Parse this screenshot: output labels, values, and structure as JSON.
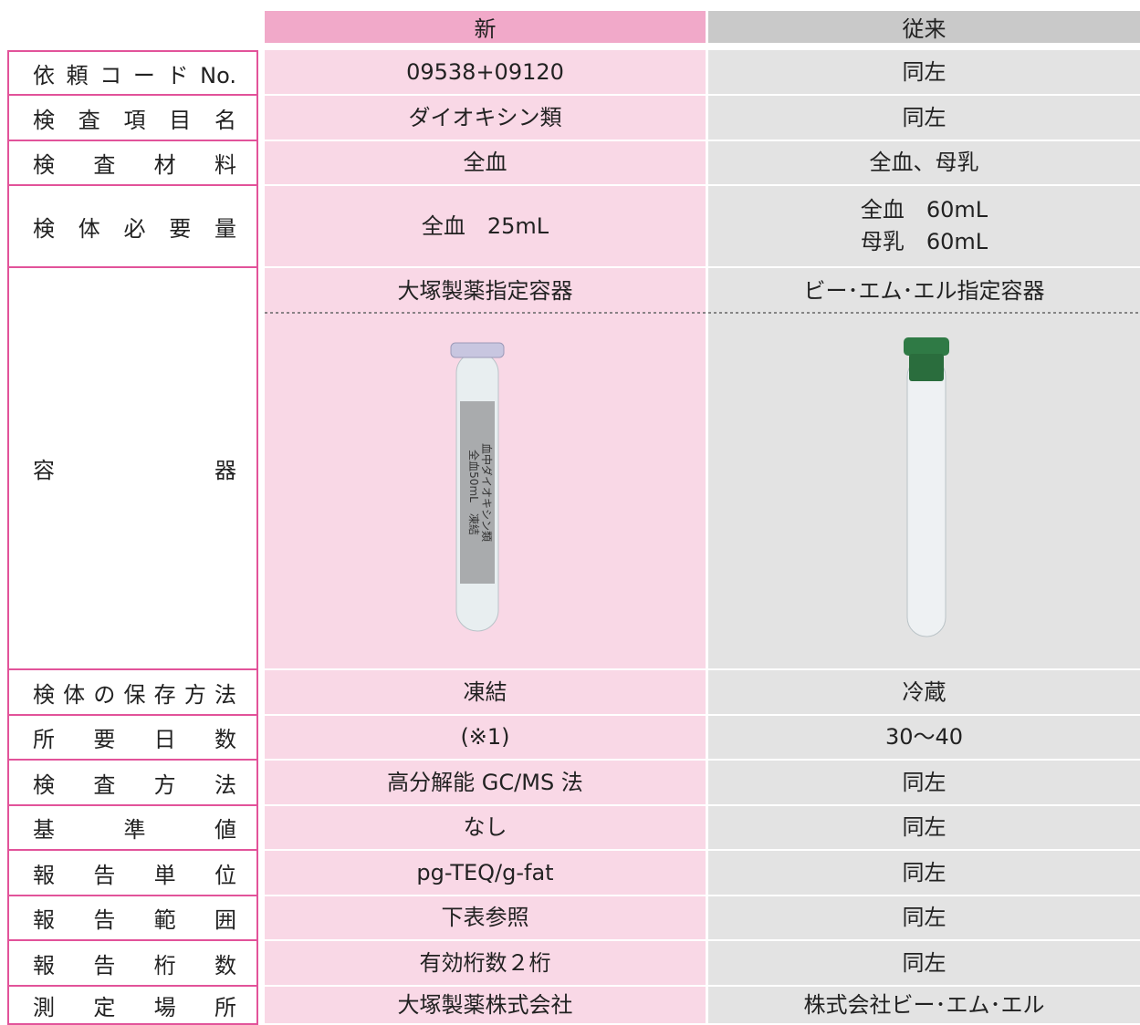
{
  "header": {
    "new": "新",
    "old": "従来"
  },
  "rows": [
    {
      "label": "依頼コードNo.",
      "new": [
        "09538+09120"
      ],
      "old": [
        "同左"
      ]
    },
    {
      "label": "検査項目名",
      "new": [
        "ダイオキシン類"
      ],
      "old": [
        "同左"
      ]
    },
    {
      "label": "検査材料",
      "new": [
        "全血"
      ],
      "old": [
        "全血、母乳"
      ]
    },
    {
      "label": "検体必要量",
      "new": [
        "全血　25mL"
      ],
      "old": [
        "全血　60mL",
        "母乳　60mL"
      ]
    },
    {
      "label": "容器",
      "new": [
        "大塚製薬指定容器"
      ],
      "old": [
        "ビー･エム･エル指定容器"
      ]
    },
    {
      "label": "検体の保存方法",
      "new": [
        "凍結"
      ],
      "old": [
        "冷蔵"
      ]
    },
    {
      "label": "所要日数",
      "new": [
        "(※1)"
      ],
      "old": [
        "30〜40"
      ]
    },
    {
      "label": "検査方法",
      "new": [
        "高分解能 GC/MS 法"
      ],
      "old": [
        "同左"
      ]
    },
    {
      "label": "基準値",
      "new": [
        "なし"
      ],
      "old": [
        "同左"
      ]
    },
    {
      "label": "報告単位",
      "new": [
        "pg-TEQ/g-fat"
      ],
      "old": [
        "同左"
      ]
    },
    {
      "label": "報告範囲",
      "new": [
        "下表参照"
      ],
      "old": [
        "同左"
      ]
    },
    {
      "label": "報告桁数",
      "new": [
        "有効桁数２桁"
      ],
      "old": [
        "同左"
      ]
    },
    {
      "label": "測定場所",
      "new": [
        "大塚製薬株式会社"
      ],
      "old": [
        "株式会社ビー･エム･エル"
      ]
    }
  ],
  "tube_label": [
    "血中ダイオキシン類",
    "全血50mL　凍結"
  ]
}
